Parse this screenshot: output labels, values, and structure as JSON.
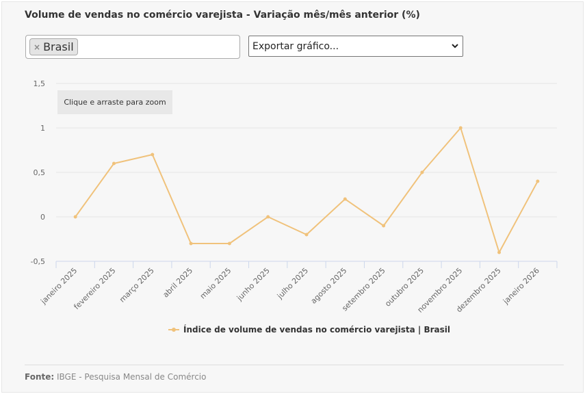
{
  "title": "Volume de vendas no comércio varejista - Variação mês/mês anterior (%)",
  "filter": {
    "tag_label": "Brasil",
    "remove_symbol": "×"
  },
  "export_select": {
    "selected": "Exportar gráfico..."
  },
  "zoom_hint": "Clique e arraste para zoom",
  "footer": {
    "source_label": "Fonte:",
    "source_text": "IBGE - Pesquisa Mensal de Comércio"
  },
  "chart_data": {
    "type": "line",
    "categories": [
      "janeiro 2025",
      "fevereiro 2025",
      "março 2025",
      "abril 2025",
      "maio 2025",
      "junho 2025",
      "julho 2025",
      "agosto 2025",
      "setembro 2025",
      "outubro 2025",
      "novembro 2025",
      "dezembro 2025",
      "janeiro 2026"
    ],
    "series": [
      {
        "name": "Índice de volume de vendas no comércio varejista | Brasil",
        "values": [
          0,
          0.6,
          0.7,
          -0.3,
          -0.3,
          0,
          -0.2,
          0.2,
          -0.1,
          0.5,
          1.0,
          -0.4,
          0.4
        ],
        "color": "#f0c27b"
      }
    ],
    "yticks": [
      "1,5",
      "1",
      "0,5",
      "0",
      "-0,5"
    ],
    "ytick_values": [
      1.5,
      1,
      0.5,
      0,
      -0.5
    ],
    "ylim": [
      -0.5,
      1.5
    ],
    "grid": true,
    "legend_position": "bottom"
  },
  "colors": {
    "series_line": "#f0c27b",
    "grid": "#e6e6e6",
    "axis": "#ccd6eb",
    "text": "#333333"
  }
}
